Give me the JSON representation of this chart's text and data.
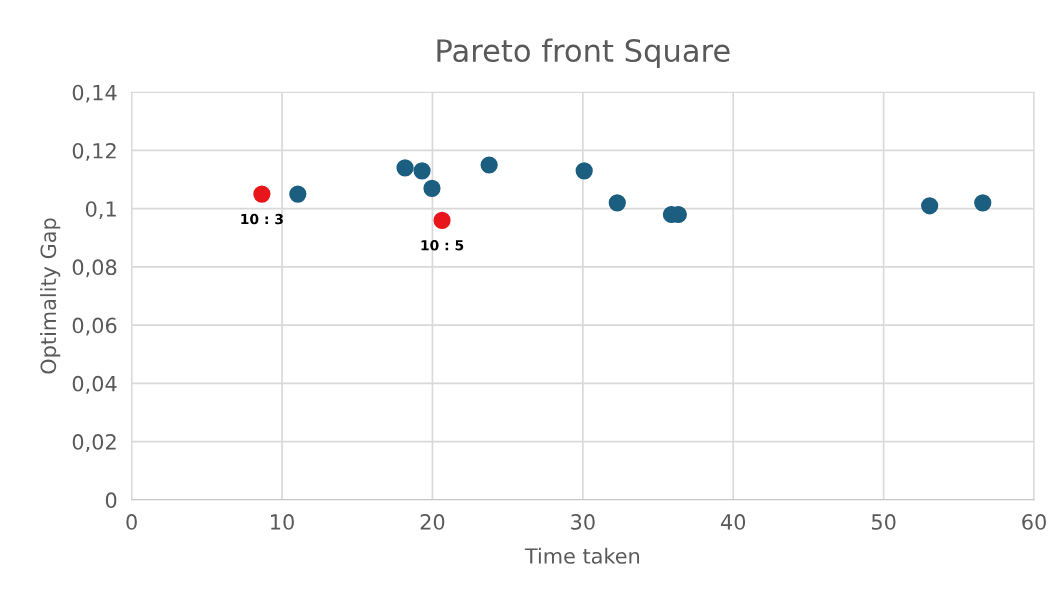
{
  "chart_data": {
    "type": "scatter",
    "title": "Pareto front Square",
    "xlabel": "Time taken",
    "ylabel": "Optimality Gap",
    "series": [
      {
        "color": "#1b5e80",
        "x": [
          11.05,
          18.18,
          19.31,
          19.97,
          23.77,
          30.09,
          32.29,
          35.89,
          36.35,
          53.06,
          56.59
        ],
        "values": [
          0.105,
          0.114,
          0.113,
          0.107,
          0.115,
          0.113,
          0.102,
          0.098,
          0.098,
          0.101,
          0.102
        ]
      },
      {
        "color": "#e8161b",
        "x": [
          8.66,
          20.64
        ],
        "values": [
          0.105,
          0.096
        ]
      }
    ],
    "annotations": [
      {
        "text": "10 : 3",
        "x": 8.66,
        "y": 0.105
      },
      {
        "text": "10 : 5",
        "x": 20.64,
        "y": 0.096
      }
    ],
    "xlim": [
      0,
      60
    ],
    "xticks": [
      0,
      10,
      20,
      30,
      40,
      50,
      60
    ],
    "ylim": [
      0,
      0.14
    ],
    "yticks": [
      {
        "value": 0,
        "label": "0"
      },
      {
        "value": 0.02,
        "label": "0,02"
      },
      {
        "value": 0.04,
        "label": "0,04"
      },
      {
        "value": 0.06,
        "label": "0,06"
      },
      {
        "value": 0.08,
        "label": "0,08"
      },
      {
        "value": 0.1,
        "label": "0,1"
      },
      {
        "value": 0.12,
        "label": "0,12"
      },
      {
        "value": 0.14,
        "label": "0,14"
      }
    ],
    "grid": true,
    "marker": "circle"
  }
}
